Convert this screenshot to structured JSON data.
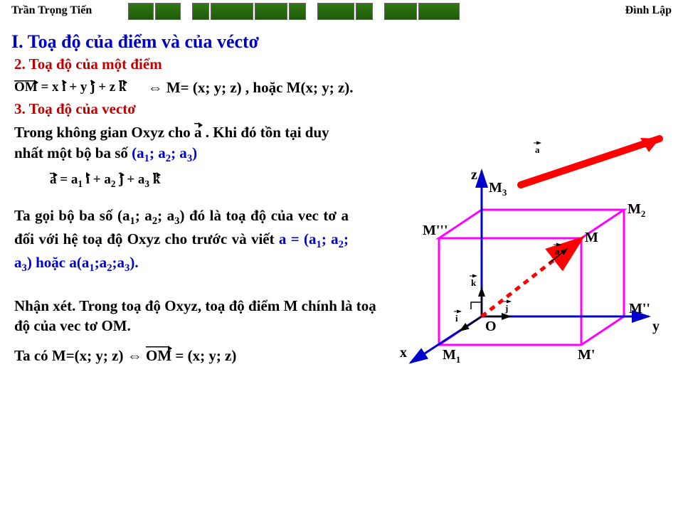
{
  "header": {
    "author_left": "Trần Trọng Tiến",
    "author_right": "Đình Lập",
    "bars": {
      "groups": [
        {
          "cells": [
            34,
            34
          ]
        },
        {
          "cells": [
            22,
            58,
            44,
            22
          ]
        },
        {
          "cells": [
            50,
            22
          ]
        },
        {
          "cells": [
            44,
            56
          ]
        }
      ],
      "fill": "#2e7a12",
      "border": "#666666"
    }
  },
  "title": "I. Toạ độ của điểm và của véctơ",
  "sec2": {
    "heading": "2. Toạ độ của một điểm",
    "formula_om": "OM = x i + y j + z k",
    "formula_line": "⇔  M= (x; y; z) , hoặc M(x; y; z)."
  },
  "sec3": {
    "heading": "3. Toạ độ của vectơ",
    "line1_a": "Trong không gian Oxyz cho ",
    "line1_b": ". Khi đó tồn tại duy nhất một bộ ba số ",
    "line1_c": "(a",
    "line1_d": "; a",
    "line1_e": "; a",
    "line1_f": ")",
    "formula_a": "a = a₁ i + a₂ j + a₃ k",
    "para_a": "Ta gọi bộ ba số (a",
    "para_b": "; a",
    "para_c": "; a",
    "para_d": ") đó là toạ độ của vec tơ a đối với hệ toạ độ Oxyz cho trước và viết ",
    "para_e": "a = (a",
    "para_f": "; a",
    "para_g": "; a",
    "para_h": ") hoặc a(a",
    "para_i": ";a",
    "para_j": ";a",
    "para_k": ")."
  },
  "note": {
    "line1": "Nhận xét. Trong toạ độ Oxyz, toạ độ điểm M chính là toạ độ của vec tơ OM.",
    "line2a": "Ta có M=(x; y; z) ⇔ ",
    "line2b": " = (x; y; z)"
  },
  "diagram": {
    "colors": {
      "cube": "#ff00ff",
      "axis": "#0000cc",
      "arrow_a": "#ff0000",
      "arrow_dash": "#ff0000",
      "label": "#000000"
    },
    "labels": {
      "O": "O",
      "x": "x",
      "y": "y",
      "z": "z",
      "M": "M",
      "M1": "M",
      "M2": "M",
      "M3": "M",
      "Mp": "M'",
      "Mpp": "M''",
      "Mppp": "M'''",
      "a": "a",
      "i": "i",
      "j": "j",
      "k": "k"
    },
    "sub": {
      "1": "1",
      "2": "2",
      "3": "3"
    }
  }
}
